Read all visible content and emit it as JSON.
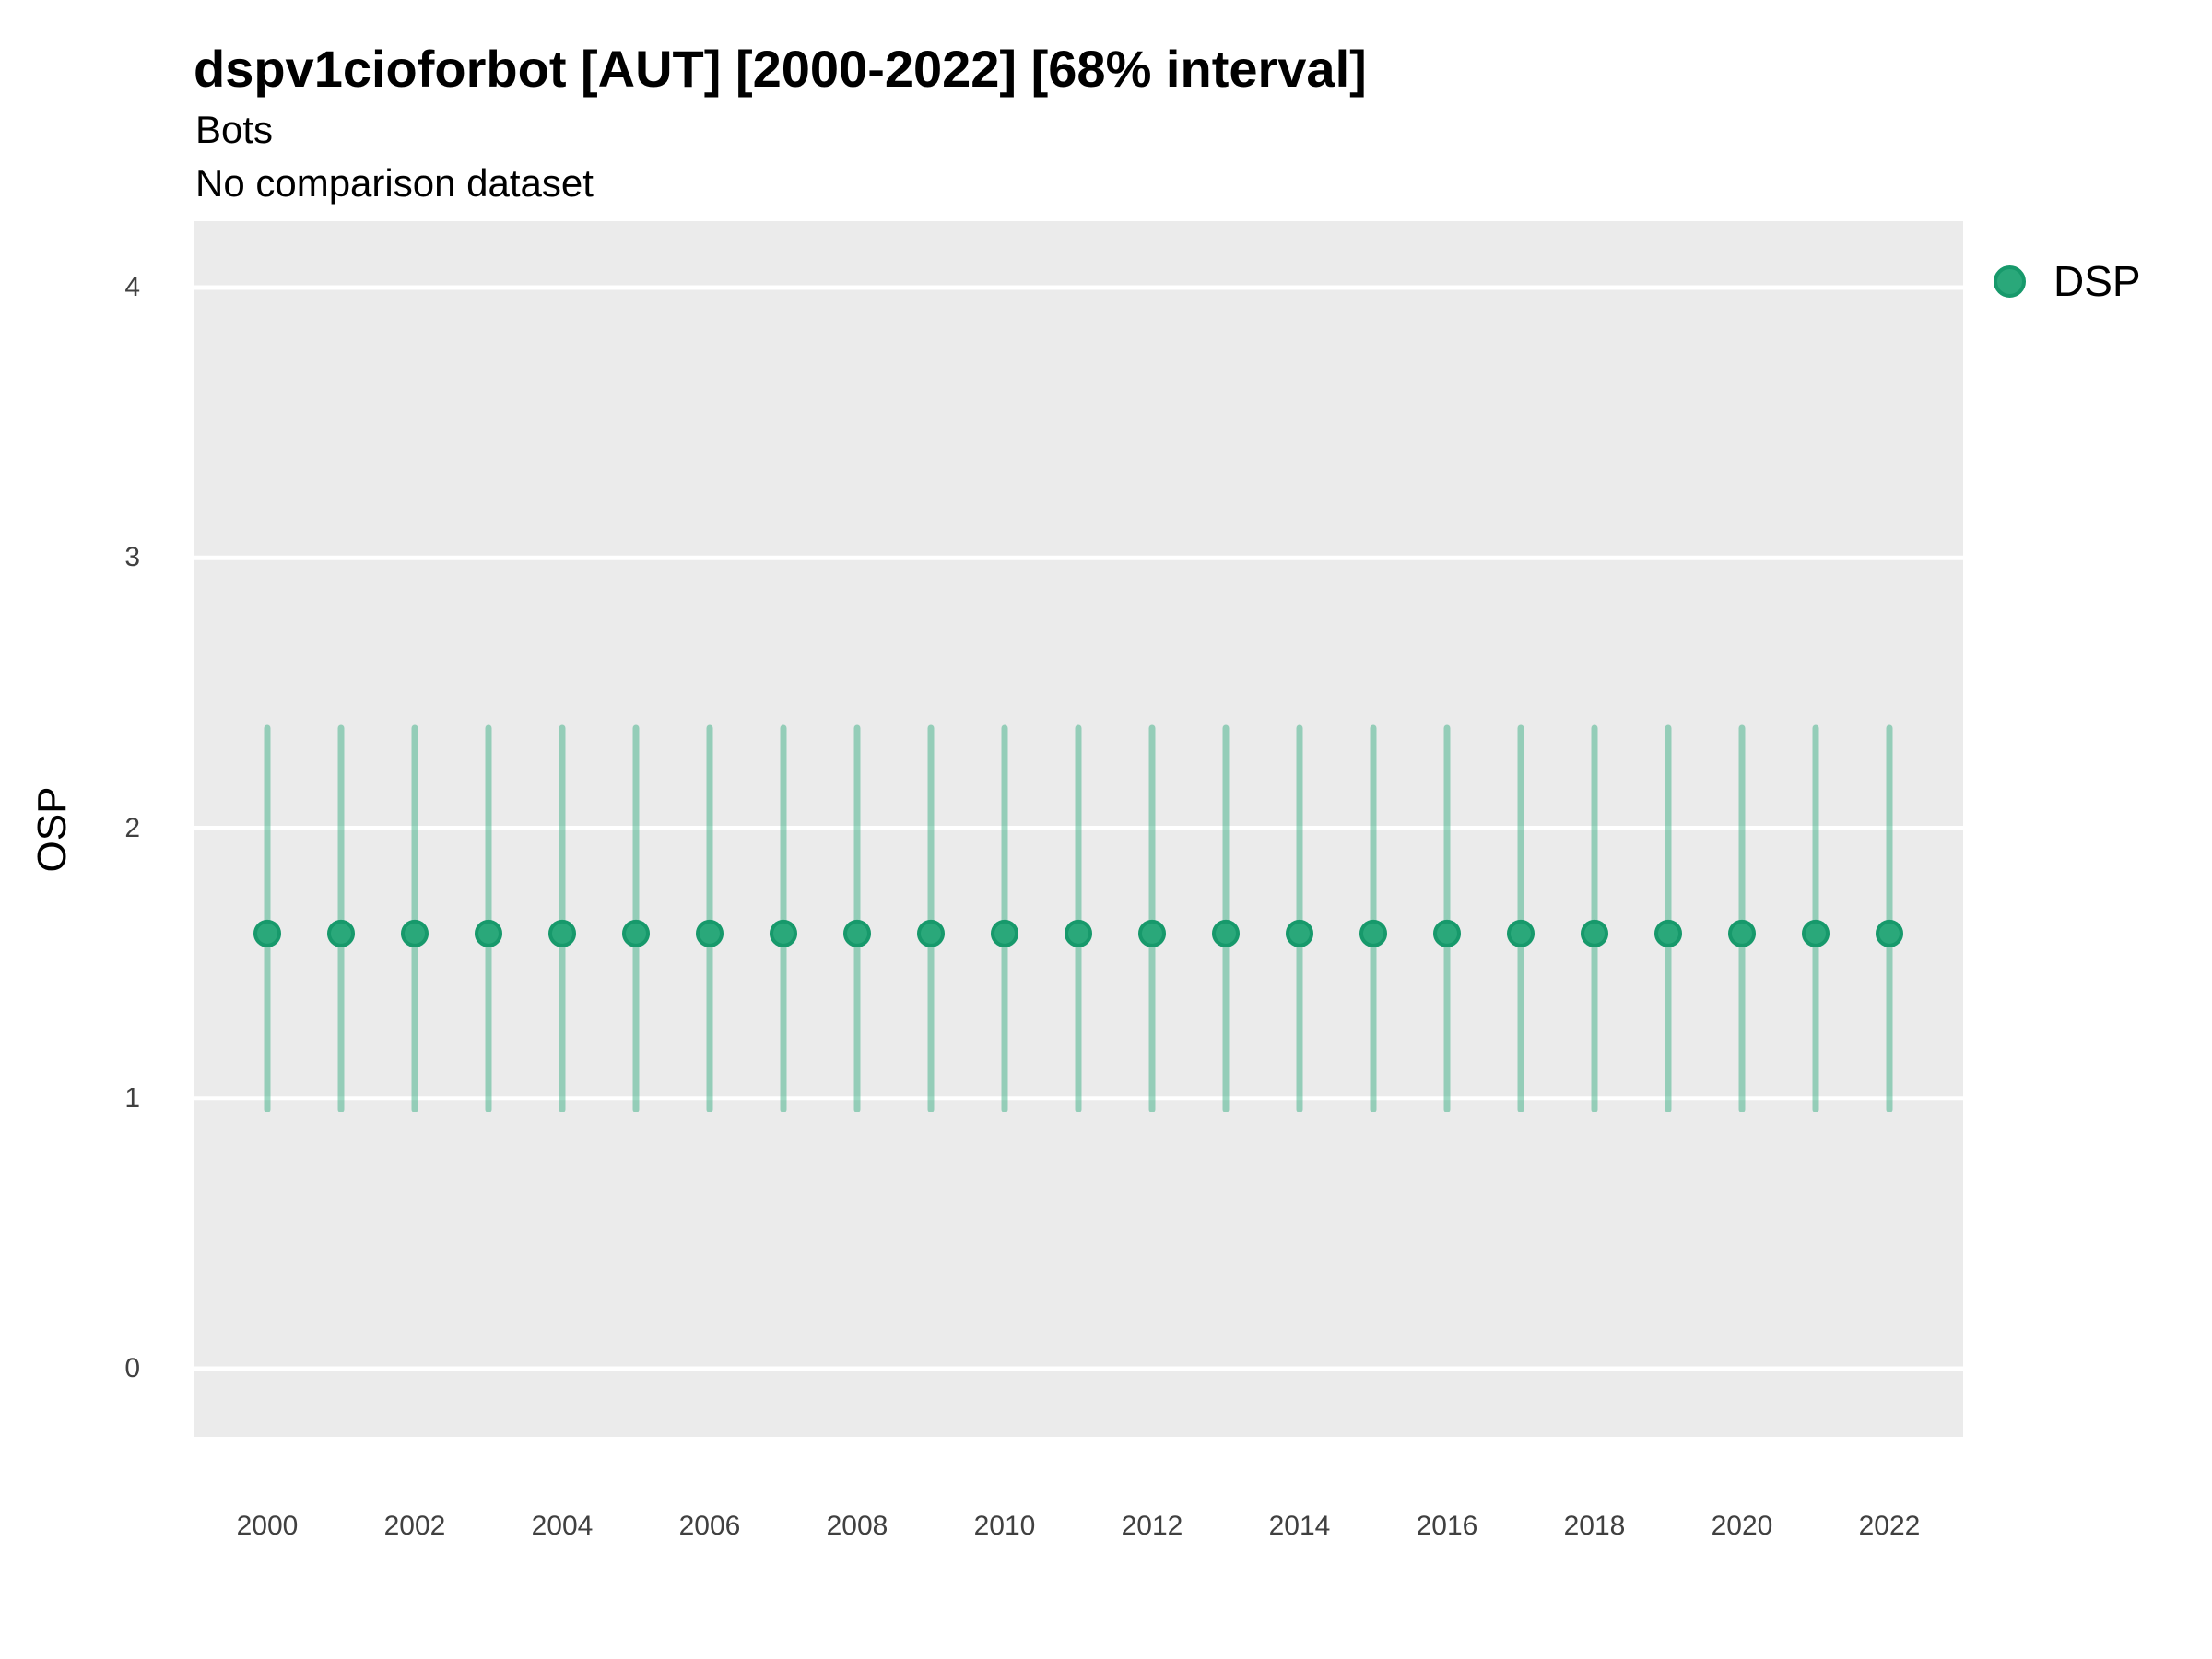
{
  "title": "dspv1cioforbot [AUT] [2000-2022] [68% interval]",
  "subtitle_line1": "Bots",
  "subtitle_line2": "No comparison dataset",
  "legend": {
    "label": "DSP",
    "position": "right"
  },
  "axes": {
    "y": {
      "label": "OSP",
      "ticks": [
        0,
        1,
        2,
        3,
        4
      ],
      "range": [
        -0.25,
        4.25
      ]
    },
    "x": {
      "label": "",
      "ticks": [
        2000,
        2002,
        2004,
        2006,
        2008,
        2010,
        2012,
        2014,
        2016,
        2018,
        2020,
        2022
      ]
    }
  },
  "colors": {
    "point_fill": "#2AA87A",
    "point_stroke": "#17996B",
    "interval_stroke": "rgba(42, 168, 122, 0.45)",
    "panel_bg": "#EBEBEB",
    "gridline": "#FFFFFF",
    "tick_text": "#404040",
    "title_text": "#000000"
  },
  "chart_data": {
    "type": "scatter",
    "title": "dspv1cioforbot [AUT] [2000-2022] [68% interval]",
    "subtitle": "Bots / No comparison dataset",
    "interval_level": "68%",
    "xlabel": "",
    "ylabel": "OSP",
    "xlim": [
      1999,
      2023
    ],
    "ylim": [
      -0.25,
      4.25
    ],
    "grid": "major-horizontal-only",
    "legend_position": "right",
    "series": [
      {
        "name": "DSP",
        "x": [
          2000,
          2001,
          2002,
          2003,
          2004,
          2005,
          2006,
          2007,
          2008,
          2009,
          2010,
          2011,
          2012,
          2013,
          2014,
          2015,
          2016,
          2017,
          2018,
          2019,
          2020,
          2021,
          2022
        ],
        "y": [
          1.61,
          1.61,
          1.61,
          1.61,
          1.61,
          1.61,
          1.61,
          1.61,
          1.61,
          1.61,
          1.61,
          1.61,
          1.61,
          1.61,
          1.61,
          1.61,
          1.61,
          1.61,
          1.61,
          1.61,
          1.61,
          1.61,
          1.61
        ],
        "lower": [
          0.96,
          0.96,
          0.96,
          0.96,
          0.96,
          0.96,
          0.96,
          0.96,
          0.96,
          0.96,
          0.96,
          0.96,
          0.96,
          0.96,
          0.96,
          0.96,
          0.96,
          0.96,
          0.96,
          0.96,
          0.96,
          0.96,
          0.96
        ],
        "upper": [
          2.37,
          2.37,
          2.37,
          2.37,
          2.37,
          2.37,
          2.37,
          2.37,
          2.37,
          2.37,
          2.37,
          2.37,
          2.37,
          2.37,
          2.37,
          2.37,
          2.37,
          2.37,
          2.37,
          2.37,
          2.37,
          2.37,
          2.37
        ]
      }
    ]
  }
}
